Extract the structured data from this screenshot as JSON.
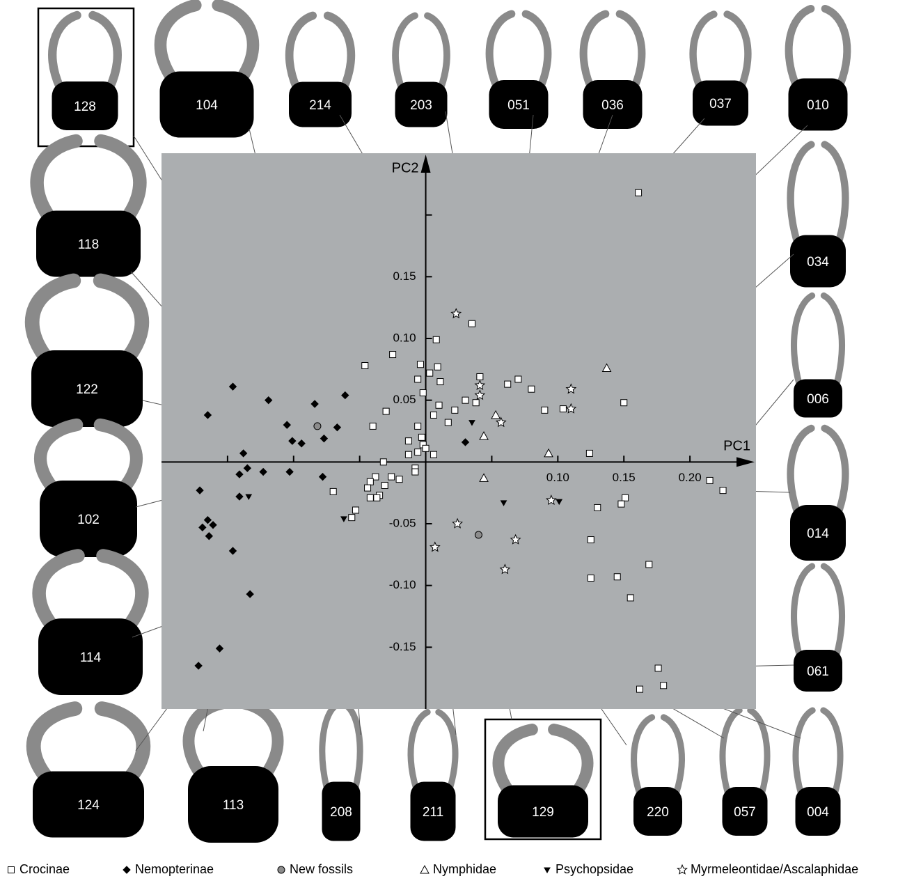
{
  "chart_data": {
    "type": "scatter",
    "x_label": "PC1",
    "y_label": "PC2",
    "xlim": [
      -0.2,
      0.25
    ],
    "ylim": [
      -0.2,
      0.25
    ],
    "xticks": [
      {
        "value": -0.15,
        "label": null
      },
      {
        "value": -0.1,
        "label": null
      },
      {
        "value": -0.05,
        "label": null
      },
      {
        "value": 0.05,
        "label": null
      },
      {
        "value": 0.1,
        "label": "0.10"
      },
      0.15,
      {
        "value": 0.2,
        "label": "0.20"
      }
    ],
    "yticks": [
      -0.15,
      {
        "value": -0.1,
        "label": "-0.10"
      },
      -0.05,
      0.05,
      {
        "value": 0.1,
        "label": "0.10"
      },
      0.15,
      {
        "value": 0.2,
        "label": null
      }
    ],
    "background": "#abaeb0",
    "series": [
      {
        "name": "Crocinae",
        "marker": "square",
        "color": "#ffffff",
        "x": [
          0.161,
          0.035,
          0.008,
          -0.046,
          -0.025,
          -0.006,
          -0.004,
          0.003,
          0.009,
          0.041,
          0.011,
          -0.002,
          0.03,
          0.038,
          0.062,
          0.07,
          0.08,
          0.09,
          0.104,
          0.15,
          0.01,
          -0.03,
          0.006,
          0.017,
          0.022,
          -0.04,
          -0.006,
          -0.003,
          -0.013,
          -0.002,
          0.0,
          -0.006,
          -0.013,
          0.006,
          -0.032,
          -0.008,
          -0.008,
          -0.026,
          -0.02,
          -0.038,
          -0.042,
          -0.031,
          -0.044,
          -0.035,
          -0.042,
          -0.037,
          -0.07,
          -0.053,
          -0.056,
          0.124,
          0.215,
          0.225,
          0.151,
          0.148,
          0.13,
          0.125,
          0.169,
          0.145,
          0.125,
          0.155,
          0.176,
          0.18,
          0.162
        ],
        "y": [
          0.218,
          0.112,
          0.099,
          0.078,
          0.087,
          0.067,
          0.079,
          0.072,
          0.077,
          0.069,
          0.065,
          0.056,
          0.05,
          0.048,
          0.063,
          0.067,
          0.059,
          0.042,
          0.043,
          0.048,
          0.046,
          0.041,
          0.038,
          0.032,
          0.042,
          0.029,
          0.029,
          0.02,
          0.017,
          0.014,
          0.011,
          0.008,
          0.006,
          0.006,
          0.0,
          -0.005,
          -0.008,
          -0.012,
          -0.014,
          -0.012,
          -0.016,
          -0.019,
          -0.021,
          -0.027,
          -0.029,
          -0.029,
          -0.024,
          -0.039,
          -0.045,
          0.007,
          -0.015,
          -0.023,
          -0.029,
          -0.034,
          -0.037,
          -0.063,
          -0.083,
          -0.093,
          -0.094,
          -0.11,
          -0.167,
          -0.181,
          -0.184
        ]
      },
      {
        "name": "Nemopterinae",
        "marker": "diamond",
        "color": "#000000",
        "x": [
          -0.146,
          -0.165,
          -0.119,
          -0.084,
          -0.061,
          -0.105,
          -0.101,
          -0.094,
          -0.077,
          -0.067,
          0.03,
          -0.138,
          -0.135,
          -0.141,
          -0.123,
          -0.103,
          -0.078,
          -0.171,
          -0.141,
          -0.165,
          -0.161,
          -0.169,
          -0.164,
          -0.146,
          -0.133,
          -0.156,
          -0.172
        ],
        "y": [
          0.061,
          0.038,
          0.05,
          0.047,
          0.054,
          0.03,
          0.017,
          0.015,
          0.019,
          0.028,
          0.016,
          0.007,
          -0.005,
          -0.01,
          -0.008,
          -0.008,
          -0.012,
          -0.023,
          -0.028,
          -0.047,
          -0.051,
          -0.053,
          -0.06,
          -0.072,
          -0.107,
          -0.151,
          -0.165
        ]
      },
      {
        "name": "New fossils",
        "marker": "circle",
        "color": "#8c8c8c",
        "x": [
          -0.082,
          0.04
        ],
        "y": [
          0.029,
          -0.059
        ]
      },
      {
        "name": "Nymphidae",
        "marker": "triangle",
        "color": "#ffffff",
        "x": [
          0.137,
          0.053,
          0.044,
          0.093,
          0.044
        ],
        "y": [
          0.076,
          0.038,
          0.021,
          0.007,
          -0.013
        ]
      },
      {
        "name": "Psychopsidae",
        "marker": "triangle-down",
        "color": "#000000",
        "x": [
          0.035,
          -0.134,
          0.059,
          0.101,
          -0.062
        ],
        "y": [
          0.032,
          -0.028,
          -0.033,
          -0.032,
          -0.046
        ]
      },
      {
        "name": "Myrmeleontidae/Ascalaphidae",
        "marker": "star",
        "color": "#ffffff",
        "x": [
          0.023,
          0.041,
          0.041,
          0.057,
          0.11,
          0.11,
          0.095,
          0.024,
          0.068,
          0.007,
          0.06
        ],
        "y": [
          0.12,
          0.062,
          0.054,
          0.032,
          0.059,
          0.043,
          -0.031,
          -0.05,
          -0.063,
          -0.069,
          -0.087
        ]
      }
    ],
    "annotations": [
      "128",
      "104",
      "214",
      "203",
      "051",
      "036",
      "037",
      "010",
      "118",
      "122",
      "034",
      "006",
      "102",
      "014",
      "114",
      "061",
      "124",
      "113",
      "208",
      "211",
      "129",
      "220",
      "057",
      "004"
    ]
  }
}
